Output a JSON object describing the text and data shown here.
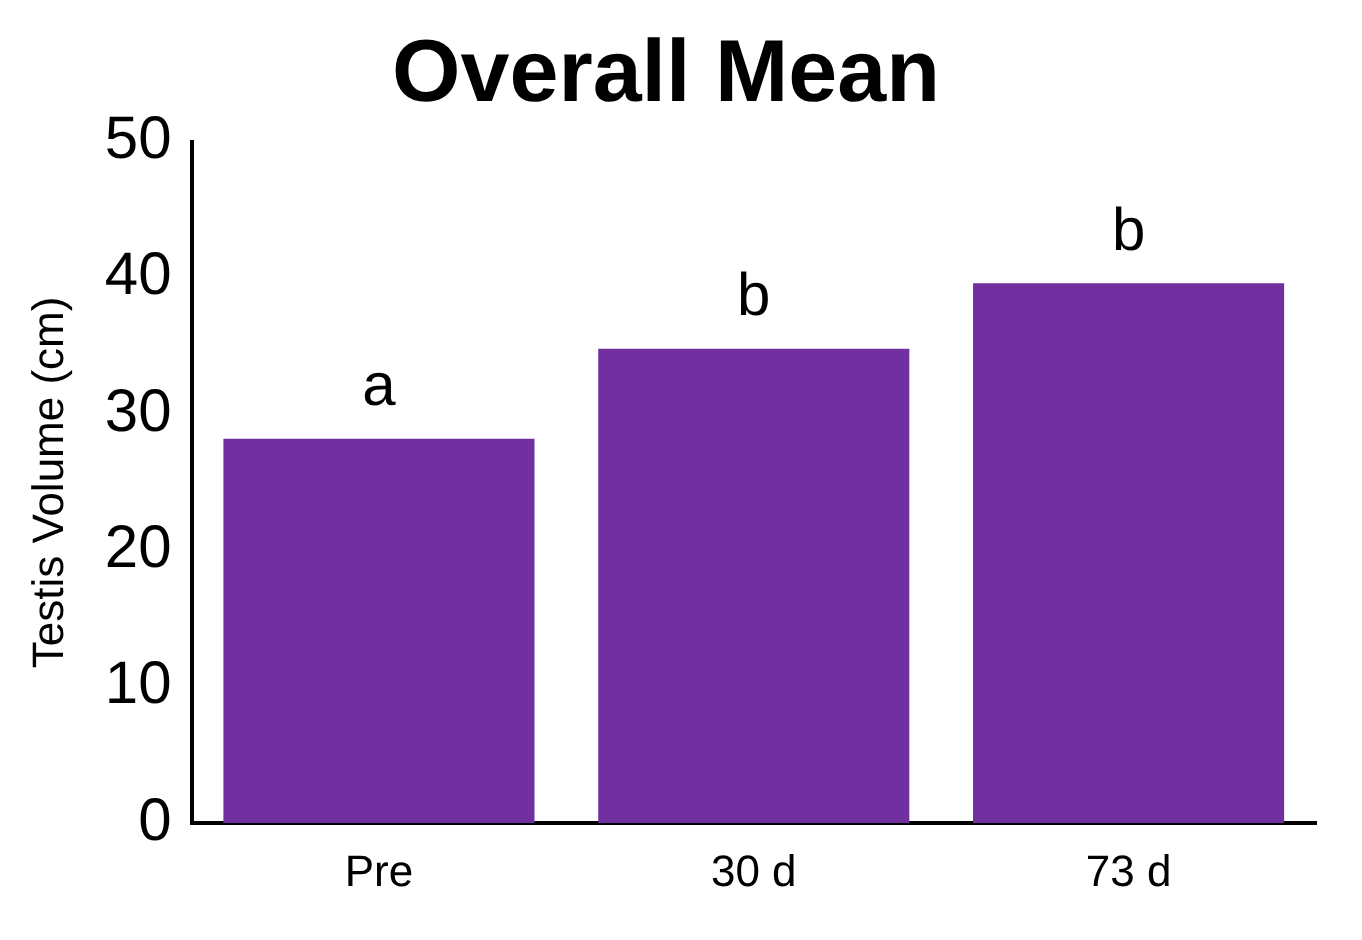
{
  "chart_data": {
    "type": "bar",
    "title": "Overall Mean",
    "ylabel": "Testis Volume (cm)",
    "categories": [
      "Pre",
      "30 d",
      "73 d"
    ],
    "values": [
      28.2,
      34.8,
      39.6
    ],
    "color": "#7030a0",
    "ylim": [
      0,
      50
    ],
    "yticks": [
      0,
      10,
      20,
      30,
      40,
      50
    ],
    "grid": false,
    "legend": false,
    "annotations": [
      {
        "text": "a",
        "x": "Pre",
        "y": 28.2
      },
      {
        "text": "b",
        "x": "30 d",
        "y": 34.8
      },
      {
        "text": "b",
        "x": "73 d",
        "y": 39.6
      }
    ]
  }
}
